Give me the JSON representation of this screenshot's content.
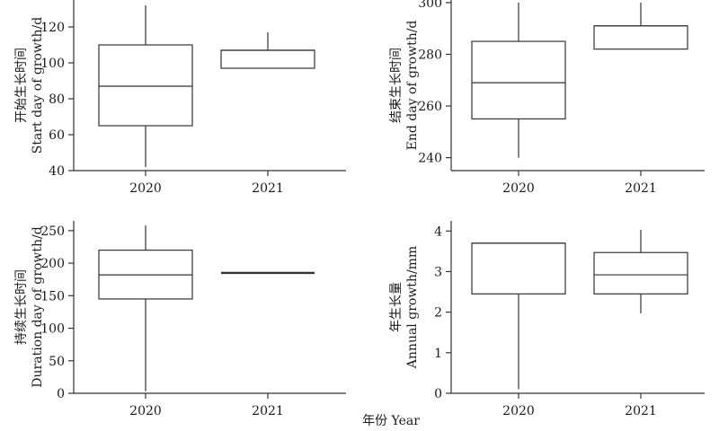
{
  "figure": {
    "xlabel": "年份 Year"
  },
  "chart_data": [
    {
      "type": "box",
      "title": "",
      "ylabel_cn": "开始生长时间",
      "ylabel_en": "Start day of growth/d",
      "categories": [
        "2020",
        "2021"
      ],
      "ylim": [
        40,
        135
      ],
      "yticks": [
        40,
        60,
        80,
        100,
        120
      ],
      "boxes": [
        {
          "category": "2020",
          "min": 42,
          "q1": 65,
          "median": 87,
          "q3": 110,
          "max": 132
        },
        {
          "category": "2021",
          "min": 97,
          "q1": 97,
          "median": 107,
          "q3": 107,
          "max": 117
        }
      ]
    },
    {
      "type": "box",
      "title": "",
      "ylabel_cn": "结束生长时间",
      "ylabel_en": "End day of growth/d",
      "categories": [
        "2020",
        "2021"
      ],
      "ylim": [
        235,
        301
      ],
      "yticks": [
        240,
        260,
        280,
        300
      ],
      "boxes": [
        {
          "category": "2020",
          "min": 240,
          "q1": 255,
          "median": 269,
          "q3": 285,
          "max": 300
        },
        {
          "category": "2021",
          "min": 282,
          "q1": 282,
          "median": 291,
          "q3": 291,
          "max": 300
        }
      ]
    },
    {
      "type": "box",
      "title": "",
      "ylabel_cn": "持续生长时间",
      "ylabel_en": "Duration day of growth/d",
      "categories": [
        "2020",
        "2021"
      ],
      "ylim": [
        0,
        265
      ],
      "yticks": [
        0,
        50,
        100,
        150,
        200,
        250
      ],
      "boxes": [
        {
          "category": "2020",
          "min": 3,
          "q1": 145,
          "median": 182,
          "q3": 220,
          "max": 258
        },
        {
          "category": "2021",
          "min": 185,
          "q1": 185,
          "median": 185,
          "q3": 185,
          "max": 185
        }
      ]
    },
    {
      "type": "box",
      "title": "",
      "ylabel_cn": "年生长量",
      "ylabel_en": "Annual growth/mm",
      "categories": [
        "2020",
        "2021"
      ],
      "ylim": [
        0,
        4.25
      ],
      "yticks": [
        0,
        1,
        2,
        3,
        4
      ],
      "boxes": [
        {
          "category": "2020",
          "min": 0.1,
          "q1": 2.45,
          "median": 3.7,
          "q3": 3.7,
          "max": 3.7
        },
        {
          "category": "2021",
          "min": 1.97,
          "q1": 2.45,
          "median": 2.92,
          "q3": 3.47,
          "max": 4.03
        }
      ]
    }
  ]
}
